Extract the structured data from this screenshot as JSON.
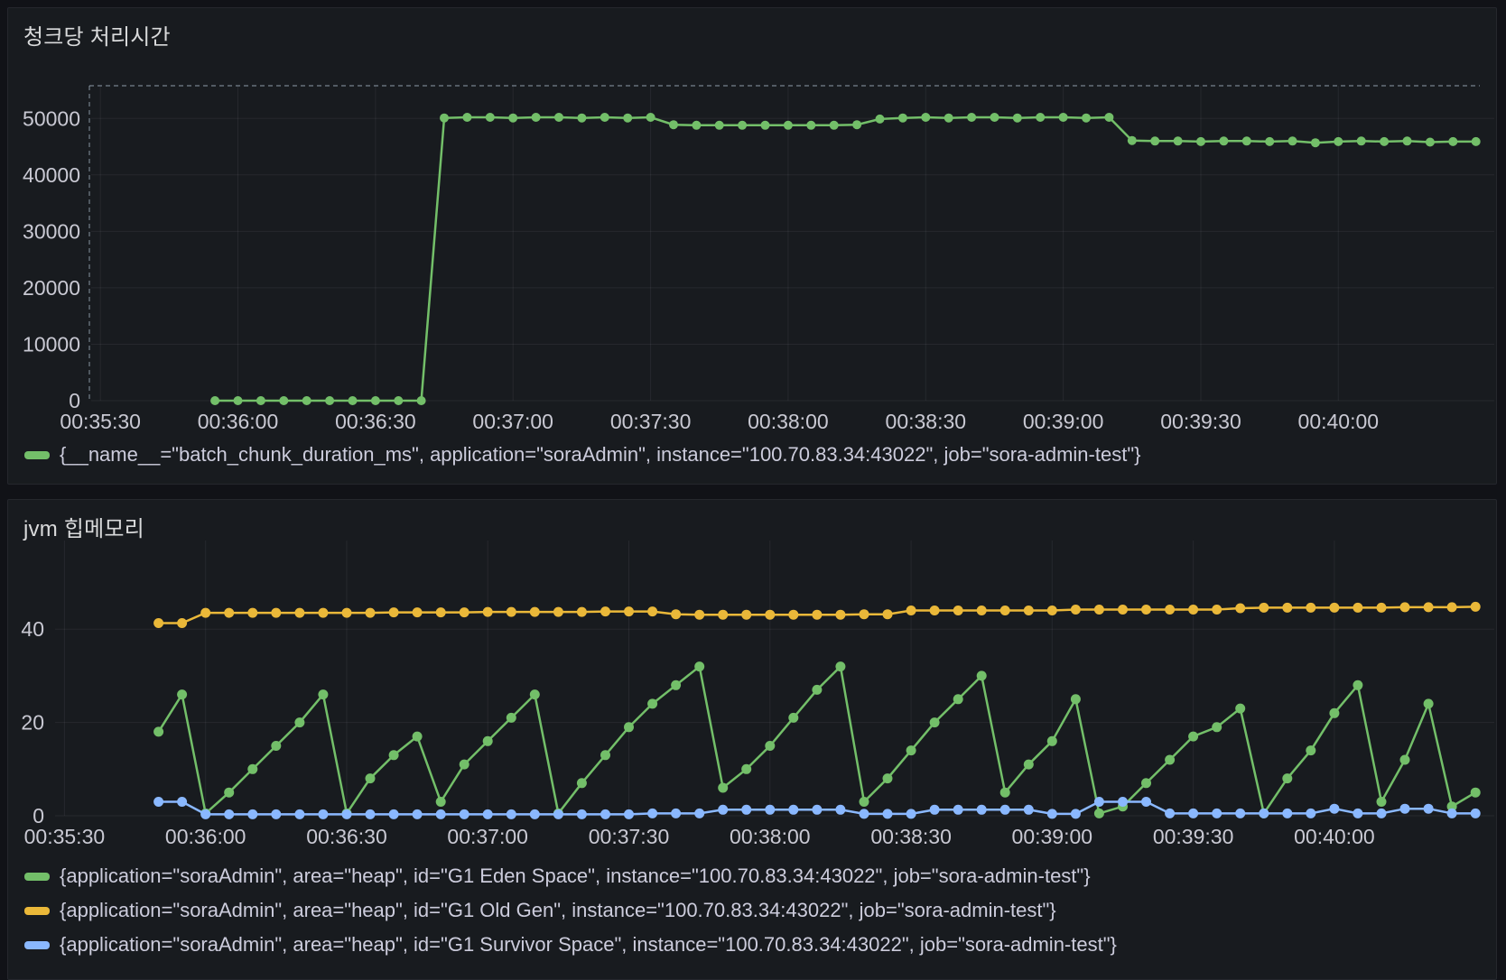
{
  "theme": {
    "page_background": "#111217",
    "panel_background": "#181B1F",
    "text_color": "#CCCCDC",
    "grid_color": "rgba(204,204,220,0.08)",
    "green": "#73BF69",
    "yellow": "#EAB839",
    "blue": "#8AB8FF"
  },
  "chart_data": [
    {
      "type": "line",
      "title": "청크당 처리시간",
      "x_domain": [
        "00:35:28",
        "00:40:34"
      ],
      "x_ticks": [
        "00:35:30",
        "00:36:00",
        "00:36:30",
        "00:37:00",
        "00:37:30",
        "00:38:00",
        "00:38:30",
        "00:39:00",
        "00:39:30",
        "00:40:00"
      ],
      "y_domain": [
        0,
        55800
      ],
      "y_ticks": [
        0,
        10000,
        20000,
        30000,
        40000,
        50000
      ],
      "grid": true,
      "legend_position": "bottom",
      "series": [
        {
          "name": "{__name__=\"batch_chunk_duration_ms\", application=\"soraAdmin\", instance=\"100.70.83.34:43022\", job=\"sora-admin-test\"}",
          "color": "#73BF69",
          "marker": "circle",
          "x": [
            "00:35:55",
            "00:36:00",
            "00:36:05",
            "00:36:10",
            "00:36:15",
            "00:36:20",
            "00:36:25",
            "00:36:30",
            "00:36:35",
            "00:36:40",
            "00:36:45",
            "00:36:50",
            "00:36:55",
            "00:37:00",
            "00:37:05",
            "00:37:10",
            "00:37:15",
            "00:37:20",
            "00:37:25",
            "00:37:30",
            "00:37:35",
            "00:37:40",
            "00:37:45",
            "00:37:50",
            "00:37:55",
            "00:38:00",
            "00:38:05",
            "00:38:10",
            "00:38:15",
            "00:38:20",
            "00:38:25",
            "00:38:30",
            "00:38:35",
            "00:38:40",
            "00:38:45",
            "00:38:50",
            "00:38:55",
            "00:39:00",
            "00:39:05",
            "00:39:10",
            "00:39:15",
            "00:39:20",
            "00:39:25",
            "00:39:30",
            "00:39:35",
            "00:39:40",
            "00:39:45",
            "00:39:50",
            "00:39:55",
            "00:40:00",
            "00:40:05",
            "00:40:10",
            "00:40:15",
            "00:40:20",
            "00:40:25",
            "00:40:30"
          ],
          "values": [
            0,
            0,
            0,
            0,
            0,
            0,
            0,
            0,
            0,
            0,
            50100,
            50200,
            50200,
            50100,
            50200,
            50200,
            50100,
            50200,
            50100,
            50200,
            48900,
            48800,
            48800,
            48800,
            48800,
            48800,
            48800,
            48800,
            48900,
            49900,
            50100,
            50200,
            50100,
            50200,
            50200,
            50100,
            50200,
            50200,
            50100,
            50200,
            46100,
            46000,
            46000,
            45900,
            46000,
            46000,
            45900,
            46000,
            45700,
            45900,
            46000,
            45900,
            46000,
            45800,
            45900,
            45900
          ]
        }
      ]
    },
    {
      "type": "line",
      "title": "jvm 힙메모리",
      "x_domain": [
        "00:35:28",
        "00:40:34"
      ],
      "x_ticks": [
        "00:35:30",
        "00:36:00",
        "00:36:30",
        "00:37:00",
        "00:37:30",
        "00:38:00",
        "00:38:30",
        "00:39:00",
        "00:39:30",
        "00:40:00"
      ],
      "y_domain": [
        0,
        59
      ],
      "y_ticks": [
        0,
        20,
        40
      ],
      "grid": true,
      "legend_position": "bottom",
      "x_shared": [
        "00:35:50",
        "00:35:55",
        "00:36:00",
        "00:36:05",
        "00:36:10",
        "00:36:15",
        "00:36:20",
        "00:36:25",
        "00:36:30",
        "00:36:35",
        "00:36:40",
        "00:36:45",
        "00:36:50",
        "00:36:55",
        "00:37:00",
        "00:37:05",
        "00:37:10",
        "00:37:15",
        "00:37:20",
        "00:37:25",
        "00:37:30",
        "00:37:35",
        "00:37:40",
        "00:37:45",
        "00:37:50",
        "00:37:55",
        "00:38:00",
        "00:38:05",
        "00:38:10",
        "00:38:15",
        "00:38:20",
        "00:38:25",
        "00:38:30",
        "00:38:35",
        "00:38:40",
        "00:38:45",
        "00:38:50",
        "00:38:55",
        "00:39:00",
        "00:39:05",
        "00:39:10",
        "00:39:15",
        "00:39:20",
        "00:39:25",
        "00:39:30",
        "00:39:35",
        "00:39:40",
        "00:39:45",
        "00:39:50",
        "00:39:55",
        "00:40:00",
        "00:40:05",
        "00:40:10",
        "00:40:15",
        "00:40:20",
        "00:40:25",
        "00:40:30"
      ],
      "series": [
        {
          "name": "{application=\"soraAdmin\", area=\"heap\", id=\"G1 Eden Space\", instance=\"100.70.83.34:43022\", job=\"sora-admin-test\"}",
          "color": "#73BF69",
          "marker": "circle",
          "values": [
            18,
            26,
            0.5,
            5,
            10,
            15,
            20,
            26,
            0.5,
            8,
            13,
            17,
            3,
            11,
            16,
            21,
            26,
            0.5,
            7,
            13,
            19,
            24,
            28,
            32,
            6,
            10,
            15,
            21,
            27,
            32,
            3,
            8,
            14,
            20,
            25,
            30,
            5,
            11,
            16,
            25,
            0.5,
            2,
            7,
            12,
            17,
            19,
            23,
            0.5,
            8,
            14,
            22,
            28,
            3,
            12,
            24,
            2,
            5
          ]
        },
        {
          "name": "{application=\"soraAdmin\", area=\"heap\", id=\"G1 Old Gen\", instance=\"100.70.83.34:43022\", job=\"sora-admin-test\"}",
          "color": "#EAB839",
          "marker": "circle",
          "values": [
            41.3,
            41.3,
            43.5,
            43.5,
            43.5,
            43.5,
            43.5,
            43.5,
            43.5,
            43.5,
            43.6,
            43.6,
            43.6,
            43.6,
            43.7,
            43.7,
            43.7,
            43.7,
            43.7,
            43.8,
            43.8,
            43.8,
            43.2,
            43.1,
            43.1,
            43.1,
            43.1,
            43.1,
            43.1,
            43.1,
            43.2,
            43.2,
            44.0,
            44.0,
            44.0,
            44.0,
            44.0,
            44.0,
            44.0,
            44.2,
            44.2,
            44.2,
            44.2,
            44.2,
            44.2,
            44.2,
            44.5,
            44.6,
            44.6,
            44.6,
            44.6,
            44.6,
            44.6,
            44.7,
            44.7,
            44.7,
            44.8
          ]
        },
        {
          "name": "{application=\"soraAdmin\", area=\"heap\", id=\"G1 Survivor Space\", instance=\"100.70.83.34:43022\", job=\"sora-admin-test\"}",
          "color": "#8AB8FF",
          "marker": "circle",
          "values": [
            3,
            3,
            0.3,
            0.3,
            0.3,
            0.3,
            0.3,
            0.3,
            0.3,
            0.3,
            0.3,
            0.3,
            0.3,
            0.3,
            0.3,
            0.3,
            0.3,
            0.3,
            0.3,
            0.3,
            0.3,
            0.5,
            0.5,
            0.5,
            1.3,
            1.3,
            1.3,
            1.3,
            1.3,
            1.3,
            0.4,
            0.4,
            0.4,
            1.3,
            1.3,
            1.3,
            1.3,
            1.3,
            0.4,
            0.4,
            3,
            3,
            3,
            0.5,
            0.5,
            0.5,
            0.5,
            0.5,
            0.5,
            0.5,
            1.5,
            0.5,
            0.5,
            1.5,
            1.5,
            0.5,
            0.5
          ]
        }
      ]
    }
  ]
}
